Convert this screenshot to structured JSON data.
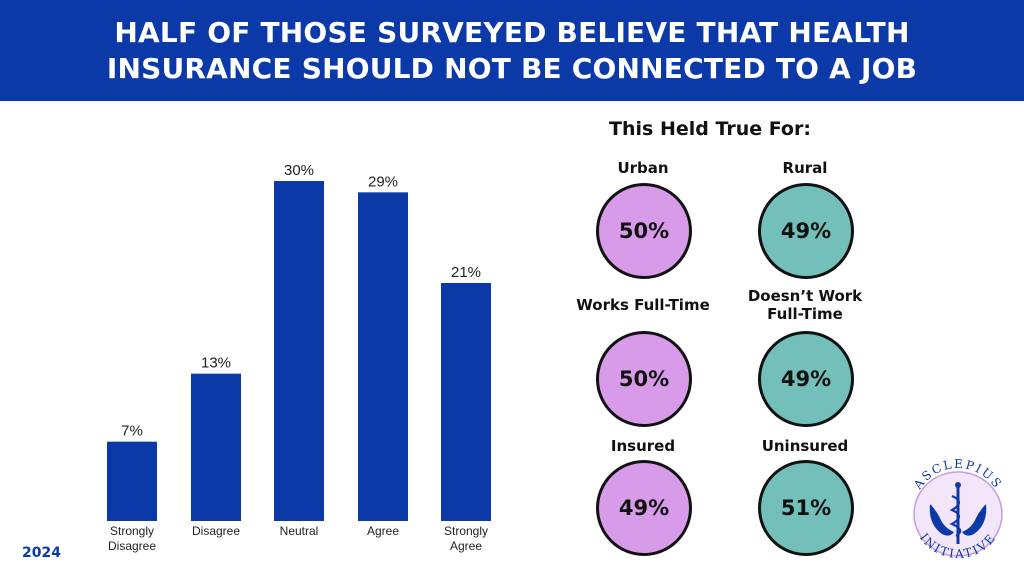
{
  "header": {
    "title_line1": "HALF OF THOSE SURVEYED BELIEVE THAT HEALTH",
    "title_line2": "INSURANCE SHOULD NOT BE CONNECTED TO A JOB"
  },
  "year": "2024",
  "chart_data": {
    "type": "bar",
    "title": "HALF OF THOSE SURVEYED BELIEVE THAT HEALTH INSURANCE SHOULD NOT BE CONNECTED TO A JOB",
    "categories": [
      [
        "Strongly",
        "Disagree"
      ],
      [
        "Disagree"
      ],
      [
        "Neutral"
      ],
      [
        "Agree"
      ],
      [
        "Strongly",
        "Agree"
      ]
    ],
    "values": [
      7,
      13,
      30,
      29,
      21
    ],
    "value_labels": [
      "7%",
      "13%",
      "30%",
      "29%",
      "21%"
    ],
    "xlabel": "",
    "ylabel": "",
    "ylim": [
      0,
      30
    ],
    "grid": false,
    "bar_color": "#0b39a8"
  },
  "breakdown": {
    "title": "This Held True For:",
    "groups": [
      {
        "label": "Urban",
        "value": "50%",
        "color": "#d79bea"
      },
      {
        "label": "Rural",
        "value": "49%",
        "color": "#72c0b9"
      },
      {
        "label": "Works Full-Time",
        "value": "50%",
        "color": "#d79bea"
      },
      {
        "label": "Doesn’t Work Full-Time",
        "label_lines": [
          "Doesn’t Work",
          "Full-Time"
        ],
        "value": "49%",
        "color": "#72c0b9"
      },
      {
        "label": "Insured",
        "value": "49%",
        "color": "#d79bea"
      },
      {
        "label": "Uninsured",
        "value": "51%",
        "color": "#72c0b9"
      }
    ]
  },
  "logo": {
    "text_top": "ASCLEPIUS",
    "text_bottom": "INITIATIVE",
    "name": "asclepius-initiative-logo"
  },
  "colors": {
    "brand_blue": "#0b39a8",
    "purple": "#d79bea",
    "teal": "#72c0b9"
  }
}
